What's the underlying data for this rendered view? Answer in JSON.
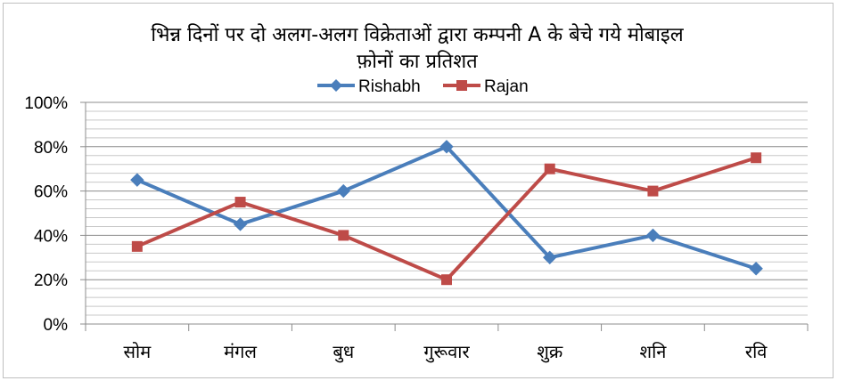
{
  "chart_data": {
    "type": "line",
    "title_line1": "भिन्न दिनों पर दो अलग-अलग  विक्रेताओं द्वारा कम्पनी  A के बेचे गये मोबाइल",
    "title_line2": "फ़ोनों का प्रतिशत",
    "xlabel": "",
    "ylabel": "",
    "categories": [
      "सोम",
      "मंगल",
      "बुध",
      "गुरूवार",
      "शुक्र",
      "शनि",
      "रवि"
    ],
    "y_ticks": [
      "0%",
      "20%",
      "40%",
      "60%",
      "80%",
      "100%"
    ],
    "ylim": [
      0,
      100
    ],
    "grid": true,
    "legend_position": "top-center",
    "series": [
      {
        "name": "Rishabh",
        "color": "#4a7ebb",
        "marker": "diamond",
        "values": [
          65,
          45,
          60,
          80,
          30,
          40,
          25
        ]
      },
      {
        "name": "Rajan",
        "color": "#be4b48",
        "marker": "square",
        "values": [
          35,
          55,
          40,
          20,
          70,
          60,
          75
        ]
      }
    ]
  }
}
